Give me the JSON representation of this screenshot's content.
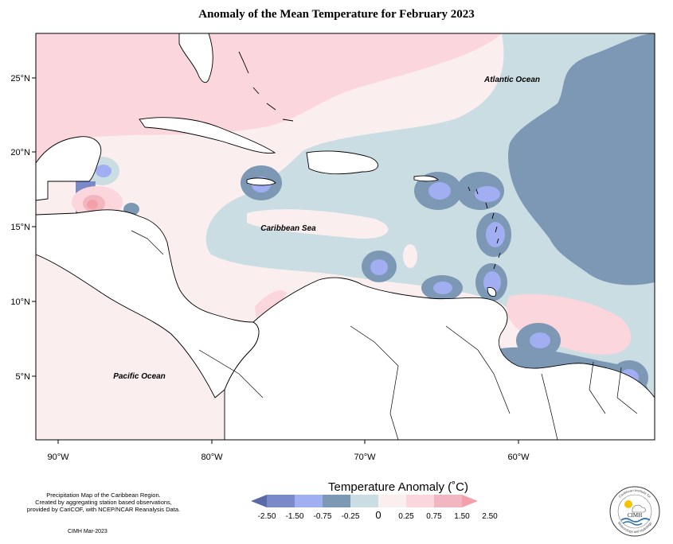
{
  "title": "Anomaly of the Mean Temperature for February 2023",
  "map": {
    "x_axis_ticks": [
      "90°W",
      "80°W",
      "70°W",
      "60°W"
    ],
    "y_axis_ticks": [
      "25°N",
      "20°N",
      "15°N",
      "10°N",
      "5°N"
    ],
    "ocean_labels": {
      "atlantic": "Atlantic Ocean",
      "caribbean": "Caribbean Sea",
      "pacific": "Pacific Ocean"
    }
  },
  "legend": {
    "title": "Temperature Anomaly (˚C)",
    "bins": [
      {
        "color": "#5a6aa8",
        "label": "-2.50"
      },
      {
        "color": "#7a8ac8",
        "label": "-1.50"
      },
      {
        "color": "#a2aef2",
        "label": "-0.75"
      },
      {
        "color": "#7d98b4",
        "label": "-0.25"
      },
      {
        "color": "#c9dde3",
        "label": "0"
      },
      {
        "color": "#fbeeee",
        "label": "0.25"
      },
      {
        "color": "#fbd6dc",
        "label": "0.75"
      },
      {
        "color": "#f1b6bf",
        "label": "1.50"
      },
      {
        "color": "#f4a0a8",
        "label": "2.50"
      }
    ]
  },
  "credits": {
    "line1": "Precipitation Map of the Caribbean Region.",
    "line2": "Created by aggregating station based observations,",
    "line3": "provided by CariCOF, with NCEP/NCAR Reanalysis Data.",
    "date": "CIMH Mar-2023"
  },
  "logo": {
    "acronym": "CIMH",
    "ring_top": "Caribbean Institute for",
    "ring_bottom": "Meteorology and Hydrology"
  }
}
